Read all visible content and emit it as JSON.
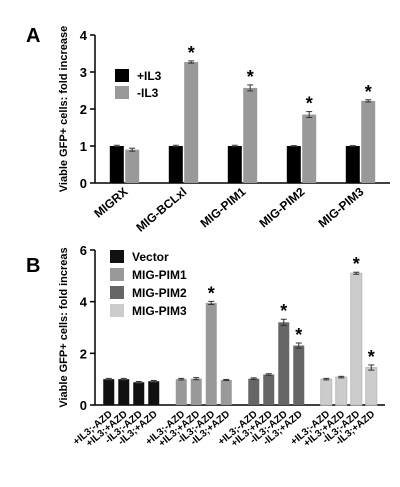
{
  "chart_data": [
    {
      "type": "bar",
      "panel": "A",
      "y_label": "Viable GFP+ cells: fold increase",
      "categories": [
        "MIGRX",
        "MIG-BCLxl",
        "MIG-PIM1",
        "MIG-PIM2",
        "MIG-PIM3"
      ],
      "series": [
        {
          "name": "+IL3",
          "color": "#000000",
          "values": [
            1,
            1,
            1,
            1,
            1
          ],
          "errors": [
            0.02,
            0.02,
            0.02,
            0.01,
            0.01
          ]
        },
        {
          "name": "-IL3",
          "color": "#999999",
          "values": [
            0.9,
            3.27,
            2.57,
            1.85,
            2.22
          ],
          "errors": [
            0.04,
            0.03,
            0.08,
            0.08,
            0.03
          ],
          "significance": [
            null,
            "*",
            "*",
            "*",
            "*"
          ]
        }
      ],
      "ylim": [
        0,
        4
      ],
      "yticks": [
        0,
        1,
        2,
        3,
        4
      ]
    },
    {
      "type": "bar",
      "panel": "B",
      "y_label": "Viable GFP+ cells: fold increas",
      "categories": [
        "+IL3;-AZD",
        "+IL3;+AZD",
        "-IL3;-AZD",
        "-IL3;+AZD"
      ],
      "series": [
        {
          "name": "Vector",
          "color": "#111111",
          "values": [
            1.0,
            1.0,
            0.88,
            0.92
          ],
          "errors": [
            0.03,
            0.03,
            0.03,
            0.03
          ]
        },
        {
          "name": "MIG-PIM1",
          "color": "#999999",
          "values": [
            1.0,
            1.02,
            3.95,
            0.97
          ],
          "errors": [
            0.03,
            0.04,
            0.06,
            0.02
          ],
          "significance": [
            null,
            null,
            "*",
            null
          ]
        },
        {
          "name": "MIG-PIM2",
          "color": "#666666",
          "values": [
            1.02,
            1.18,
            3.2,
            2.3
          ],
          "errors": [
            0.03,
            0.03,
            0.12,
            0.1
          ],
          "significance": [
            null,
            null,
            "*",
            "*"
          ]
        },
        {
          "name": "MIG-PIM3",
          "color": "#cccccc",
          "values": [
            1.0,
            1.08,
            5.1,
            1.45
          ],
          "errors": [
            0.03,
            0.03,
            0.04,
            0.1
          ],
          "significance": [
            null,
            null,
            "*",
            "*"
          ]
        }
      ],
      "ylim": [
        0,
        6
      ],
      "yticks": [
        0,
        2,
        4,
        6
      ]
    }
  ]
}
